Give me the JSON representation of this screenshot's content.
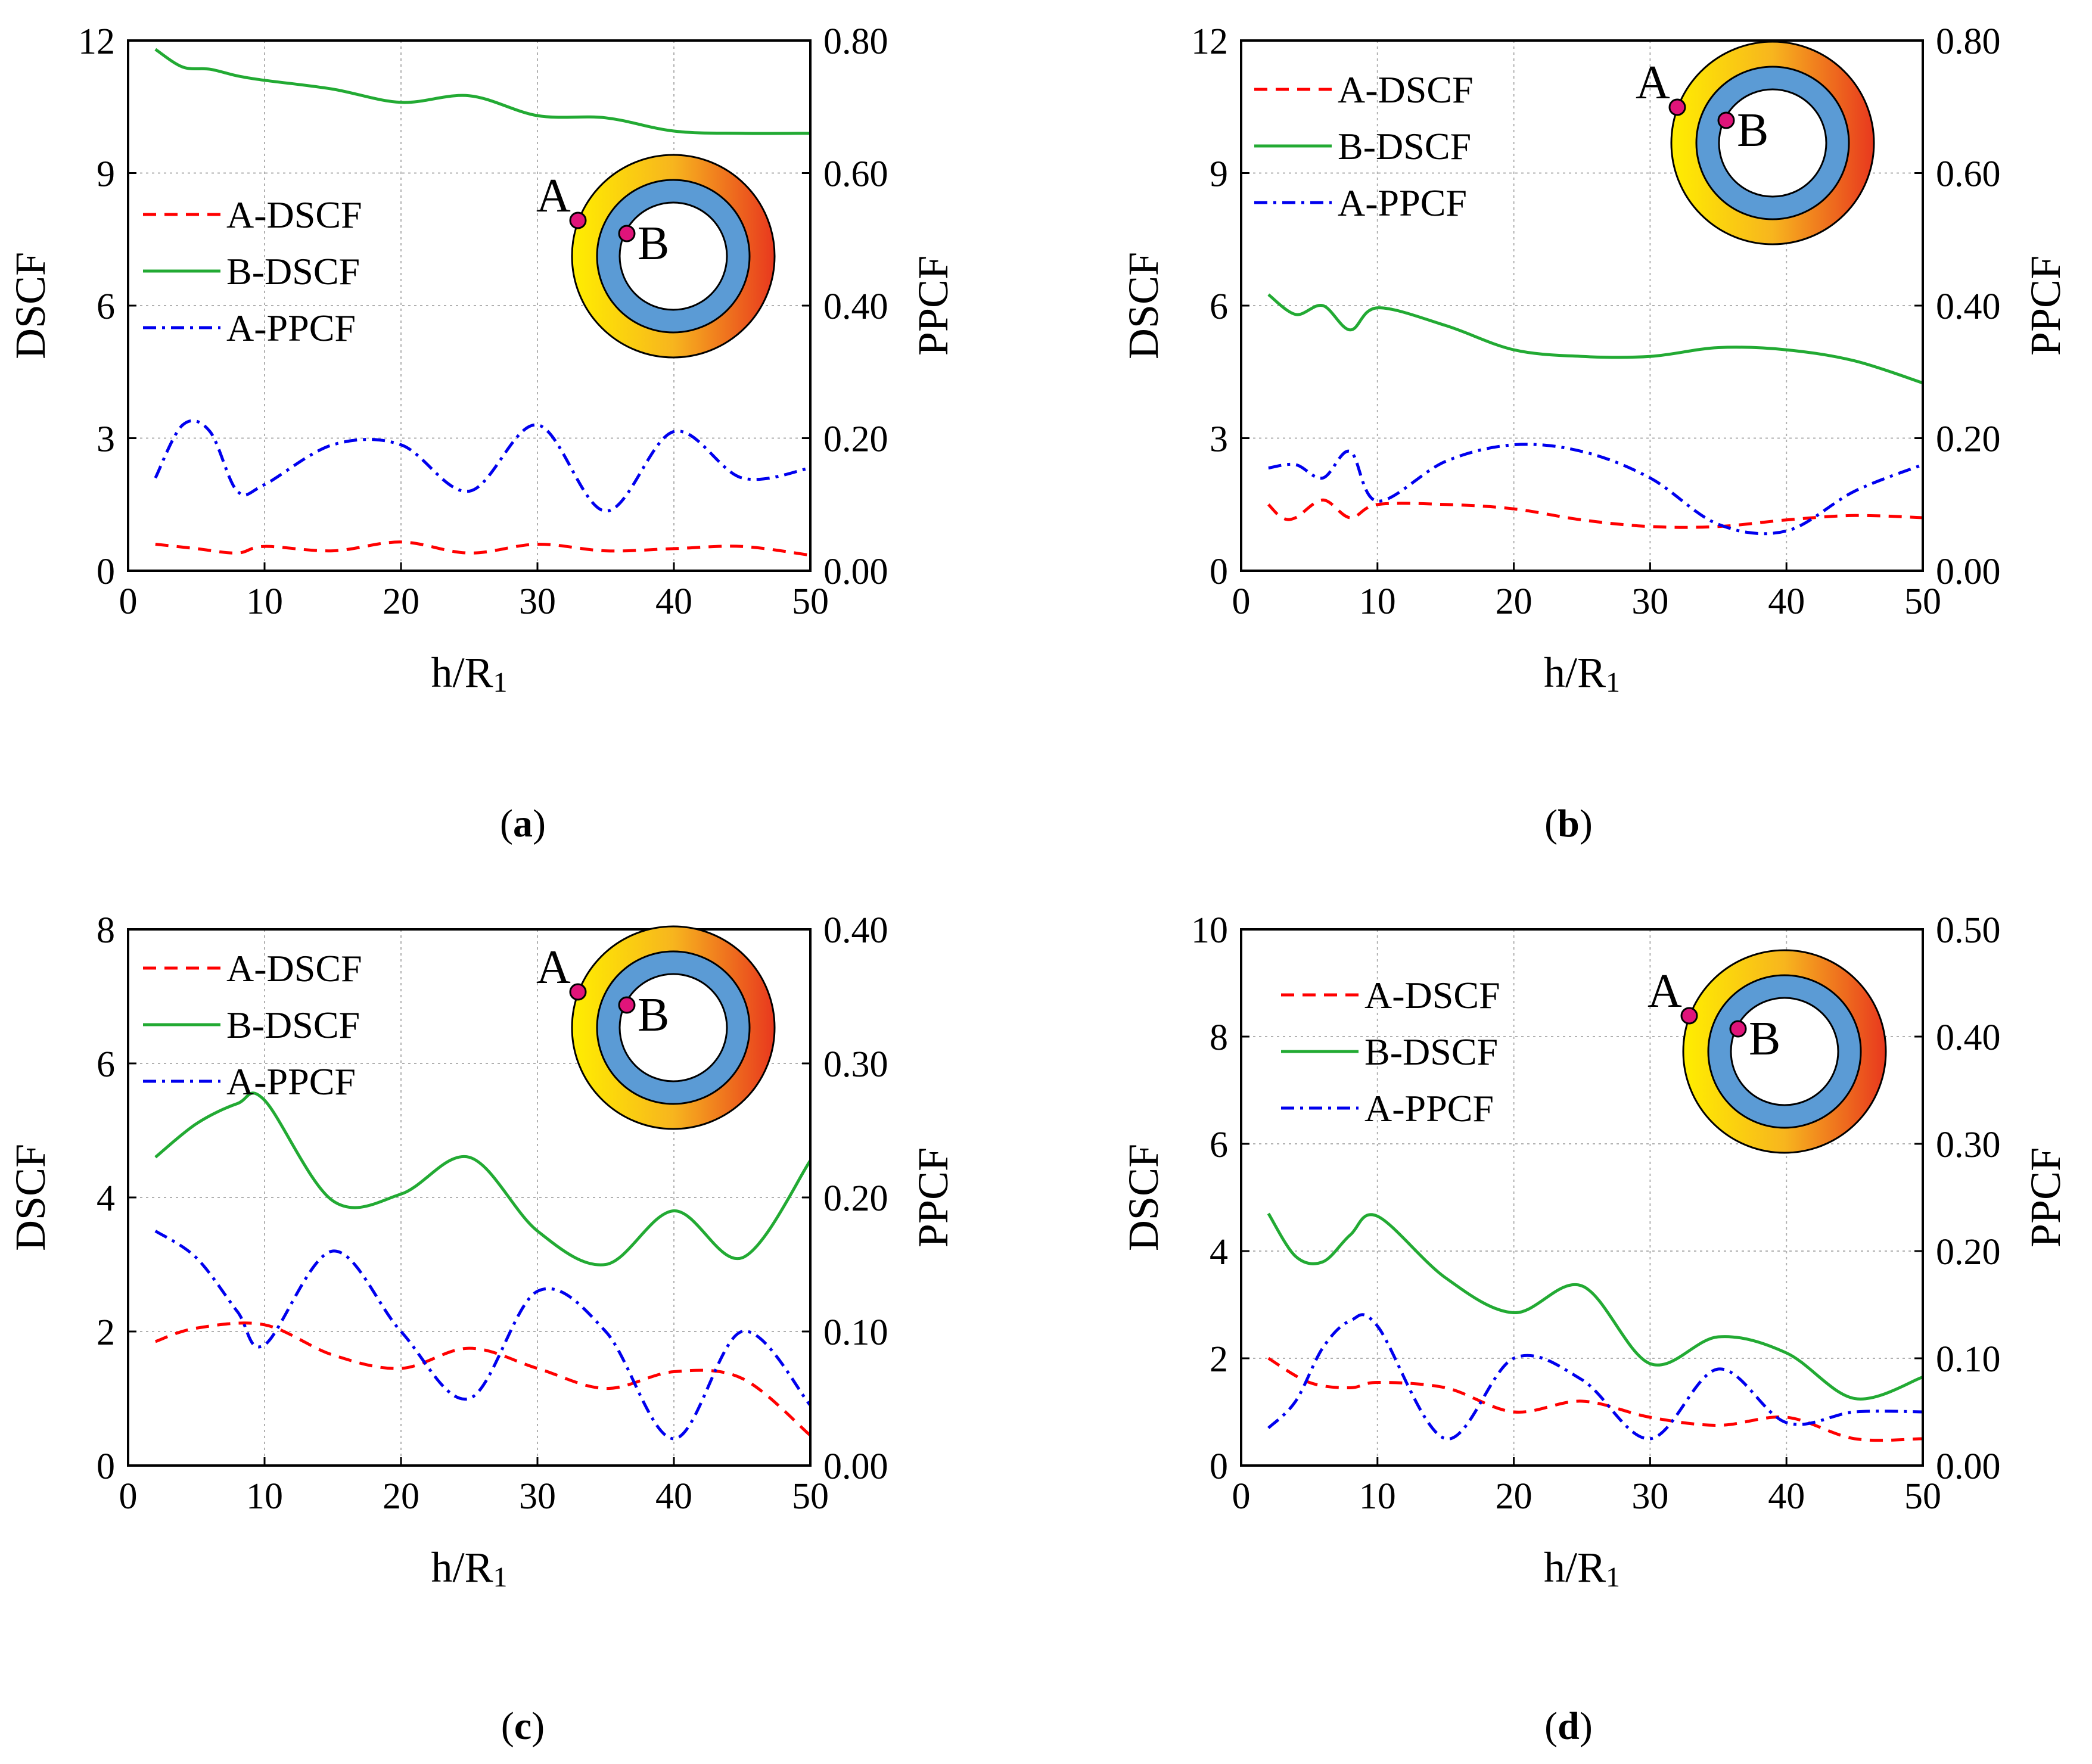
{
  "colors": {
    "a_dscf": "#ff0000",
    "b_dscf": "#22aa33",
    "a_ppcf": "#0000ee",
    "grid": "#b0b0b0",
    "ring_inner": "#5b9bd5",
    "ring_outer_left": "#ffee00",
    "ring_outer_right": "#e8381e",
    "point": "#e0147a"
  },
  "inset_labels": {
    "a": "A",
    "b": "B"
  },
  "chart_data": [
    {
      "id": "a",
      "type": "line",
      "caption_label": "a",
      "xlabel": "h/R",
      "xlabel_sub": "1",
      "ylabel": "DSCF",
      "y2label": "PPCF",
      "xlim": [
        0,
        50
      ],
      "ylim": [
        0,
        12
      ],
      "y2lim": [
        0,
        0.8
      ],
      "xticks": [
        "0",
        "10",
        "20",
        "30",
        "40",
        "50"
      ],
      "yticks": [
        "0",
        "3",
        "6",
        "9",
        "12"
      ],
      "y2ticks": [
        "0.00",
        "0.20",
        "0.40",
        "0.60",
        "0.80"
      ],
      "legend": [
        "A-DSCF",
        "B-DSCF",
        "A-PPCF"
      ],
      "legend_position": "middle-left",
      "series": [
        {
          "name": "A-DSCF",
          "axis": "left",
          "style": "dashed",
          "x": [
            2,
            5,
            8,
            10,
            15,
            20,
            25,
            30,
            35,
            40,
            45,
            50
          ],
          "y": [
            0.6,
            0.5,
            0.4,
            0.55,
            0.45,
            0.65,
            0.4,
            0.6,
            0.45,
            0.5,
            0.55,
            0.35
          ]
        },
        {
          "name": "B-DSCF",
          "axis": "left",
          "style": "solid",
          "x": [
            2,
            4,
            6,
            8,
            10,
            15,
            20,
            25,
            30,
            35,
            40,
            45,
            50
          ],
          "y": [
            11.8,
            11.4,
            11.35,
            11.2,
            11.1,
            10.9,
            10.6,
            10.75,
            10.3,
            10.25,
            9.95,
            9.9,
            9.9
          ]
        },
        {
          "name": "A-PPCF",
          "axis": "right",
          "style": "dashdot",
          "x": [
            2,
            4,
            6,
            8,
            10,
            15,
            20,
            25,
            30,
            35,
            40,
            45,
            50
          ],
          "y": [
            0.14,
            0.22,
            0.21,
            0.12,
            0.13,
            0.19,
            0.19,
            0.12,
            0.22,
            0.09,
            0.21,
            0.14,
            0.155
          ]
        }
      ]
    },
    {
      "id": "b",
      "type": "line",
      "caption_label": "b",
      "xlabel": "h/R",
      "xlabel_sub": "1",
      "ylabel": "DSCF",
      "y2label": "PPCF",
      "xlim": [
        0,
        50
      ],
      "ylim": [
        0,
        12
      ],
      "y2lim": [
        0,
        0.8
      ],
      "xticks": [
        "0",
        "10",
        "20",
        "30",
        "40",
        "50"
      ],
      "yticks": [
        "0",
        "3",
        "6",
        "9",
        "12"
      ],
      "y2ticks": [
        "0.00",
        "0.20",
        "0.40",
        "0.60",
        "0.80"
      ],
      "legend": [
        "A-DSCF",
        "B-DSCF",
        "A-PPCF"
      ],
      "legend_position": "top-left",
      "series": [
        {
          "name": "A-DSCF",
          "axis": "left",
          "style": "dashed",
          "x": [
            2,
            3,
            4,
            6,
            8,
            10,
            15,
            20,
            25,
            30,
            35,
            40,
            45,
            50
          ],
          "y": [
            1.5,
            1.2,
            1.2,
            1.6,
            1.2,
            1.5,
            1.5,
            1.4,
            1.15,
            1.0,
            1.0,
            1.15,
            1.25,
            1.2
          ]
        },
        {
          "name": "B-DSCF",
          "axis": "left",
          "style": "solid",
          "x": [
            2,
            4,
            6,
            8,
            10,
            15,
            20,
            25,
            30,
            35,
            40,
            45,
            50
          ],
          "y": [
            6.25,
            5.8,
            6.0,
            5.45,
            5.95,
            5.55,
            5.0,
            4.85,
            4.85,
            5.05,
            5.0,
            4.75,
            4.25
          ]
        },
        {
          "name": "A-PPCF",
          "axis": "right",
          "style": "dashdot",
          "x": [
            2,
            4,
            6,
            8,
            10,
            15,
            20,
            25,
            30,
            35,
            40,
            45,
            50
          ],
          "y": [
            0.155,
            0.16,
            0.14,
            0.18,
            0.105,
            0.165,
            0.19,
            0.18,
            0.14,
            0.07,
            0.06,
            0.12,
            0.16
          ]
        }
      ]
    },
    {
      "id": "c",
      "type": "line",
      "caption_label": "c",
      "xlabel": "h/R",
      "xlabel_sub": "1",
      "ylabel": "DSCF",
      "y2label": "PPCF",
      "xlim": [
        0,
        50
      ],
      "ylim": [
        0,
        8
      ],
      "y2lim": [
        0,
        0.4
      ],
      "xticks": [
        "0",
        "10",
        "20",
        "30",
        "40",
        "50"
      ],
      "yticks": [
        "0",
        "2",
        "4",
        "6",
        "8"
      ],
      "y2ticks": [
        "0.00",
        "0.10",
        "0.20",
        "0.30",
        "0.40"
      ],
      "legend": [
        "A-DSCF",
        "B-DSCF",
        "A-PPCF"
      ],
      "legend_position": "top-left",
      "series": [
        {
          "name": "A-DSCF",
          "axis": "left",
          "style": "dashed",
          "x": [
            2,
            5,
            10,
            15,
            20,
            25,
            30,
            35,
            40,
            45,
            50
          ],
          "y": [
            1.85,
            2.05,
            2.1,
            1.65,
            1.45,
            1.75,
            1.45,
            1.15,
            1.4,
            1.3,
            0.45
          ]
        },
        {
          "name": "B-DSCF",
          "axis": "left",
          "style": "solid",
          "x": [
            2,
            5,
            8,
            10,
            15,
            20,
            25,
            30,
            35,
            40,
            45,
            50
          ],
          "y": [
            4.6,
            5.1,
            5.4,
            5.45,
            3.95,
            4.05,
            4.6,
            3.5,
            3.0,
            3.8,
            3.1,
            4.55
          ]
        },
        {
          "name": "A-PPCF",
          "axis": "right",
          "style": "dashdot",
          "x": [
            2,
            5,
            8,
            10,
            15,
            20,
            25,
            30,
            35,
            40,
            45,
            50
          ],
          "y": [
            0.175,
            0.155,
            0.115,
            0.09,
            0.16,
            0.1,
            0.05,
            0.13,
            0.1,
            0.02,
            0.1,
            0.045
          ]
        }
      ]
    },
    {
      "id": "d",
      "type": "line",
      "caption_label": "d",
      "xlabel": "h/R",
      "xlabel_sub": "1",
      "ylabel": "DSCF",
      "y2label": "PPCF",
      "xlim": [
        0,
        50
      ],
      "ylim": [
        0,
        10
      ],
      "y2lim": [
        0,
        0.5
      ],
      "xticks": [
        "0",
        "10",
        "20",
        "30",
        "40",
        "50"
      ],
      "yticks": [
        "0",
        "2",
        "4",
        "6",
        "8",
        "10"
      ],
      "y2ticks": [
        "0.00",
        "0.10",
        "0.20",
        "0.30",
        "0.40",
        "0.50"
      ],
      "legend": [
        "A-DSCF",
        "B-DSCF",
        "A-PPCF"
      ],
      "legend_position": "top-left",
      "series": [
        {
          "name": "A-DSCF",
          "axis": "left",
          "style": "dashed",
          "x": [
            2,
            5,
            8,
            10,
            15,
            20,
            25,
            30,
            35,
            40,
            45,
            50
          ],
          "y": [
            2.0,
            1.55,
            1.45,
            1.55,
            1.45,
            1.0,
            1.2,
            0.9,
            0.75,
            0.9,
            0.5,
            0.5
          ]
        },
        {
          "name": "B-DSCF",
          "axis": "left",
          "style": "solid",
          "x": [
            2,
            4,
            6,
            8,
            10,
            15,
            20,
            25,
            30,
            35,
            40,
            45,
            50
          ],
          "y": [
            4.7,
            3.9,
            3.8,
            4.3,
            4.65,
            3.5,
            2.85,
            3.35,
            1.9,
            2.4,
            2.1,
            1.25,
            1.65
          ]
        },
        {
          "name": "A-PPCF",
          "axis": "right",
          "style": "dashdot",
          "x": [
            2,
            4,
            6,
            8,
            10,
            15,
            20,
            25,
            30,
            35,
            40,
            45,
            50
          ],
          "y": [
            0.035,
            0.06,
            0.11,
            0.135,
            0.13,
            0.025,
            0.1,
            0.08,
            0.025,
            0.09,
            0.04,
            0.05,
            0.05
          ]
        }
      ]
    }
  ]
}
